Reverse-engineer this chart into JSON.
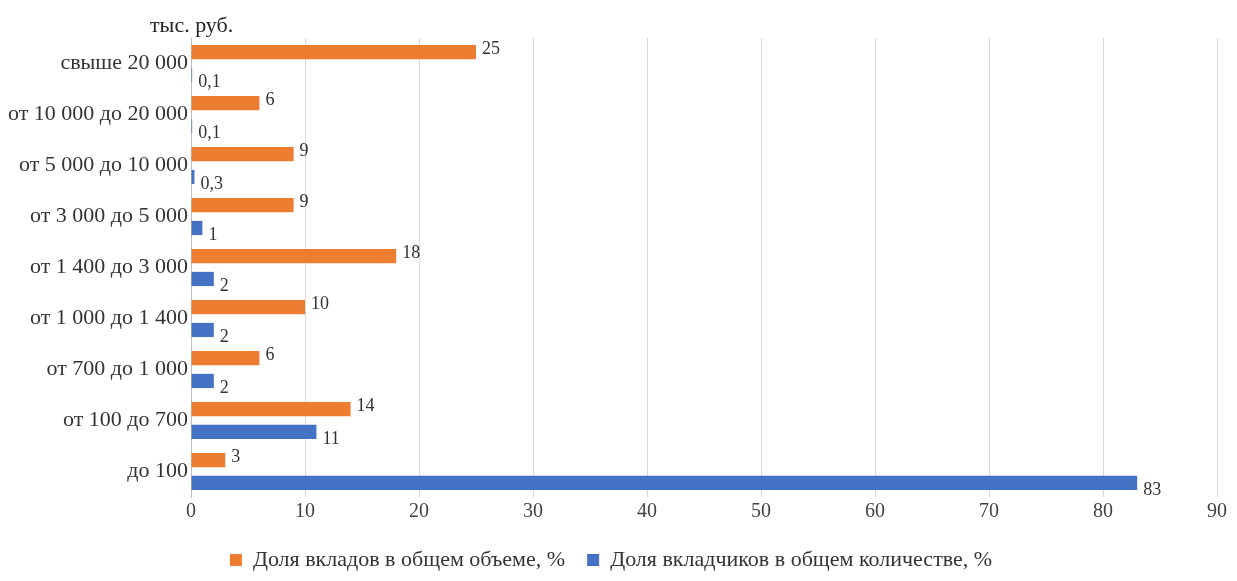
{
  "chart_data": {
    "type": "bar",
    "orientation": "horizontal",
    "ylabel": "тыс. руб.",
    "categories": [
      "свыше 20 000",
      "от 10 000 до 20 000",
      "от 5 000 до 10 000",
      "от 3 000 до 5 000",
      "от 1 400 до 3 000",
      "от 1 000 до 1 400",
      "от 700 до 1 000",
      "от 100 до 700",
      "до 100"
    ],
    "series": [
      {
        "name": "Доля вкладов в общем объеме, %",
        "color": "#ed7d31",
        "values": [
          25,
          6,
          9,
          9,
          18,
          10,
          6,
          14,
          3
        ],
        "value_labels": [
          "25",
          "6",
          "9",
          "9",
          "18",
          "10",
          "6",
          "14",
          "3"
        ]
      },
      {
        "name": "Доля вкладчиков в общем количестве, %",
        "color": "#4472c4",
        "values": [
          0.1,
          0.1,
          0.3,
          1,
          2,
          2,
          2,
          11,
          83
        ],
        "value_labels": [
          "0,1",
          "0,1",
          "0,3",
          "1",
          "2",
          "2",
          "2",
          "11",
          "83"
        ]
      }
    ],
    "xlim": [
      0,
      90
    ],
    "xticks": [
      0,
      10,
      20,
      30,
      40,
      50,
      60,
      70,
      80,
      90
    ],
    "grid": "x",
    "legend": "bottom"
  }
}
